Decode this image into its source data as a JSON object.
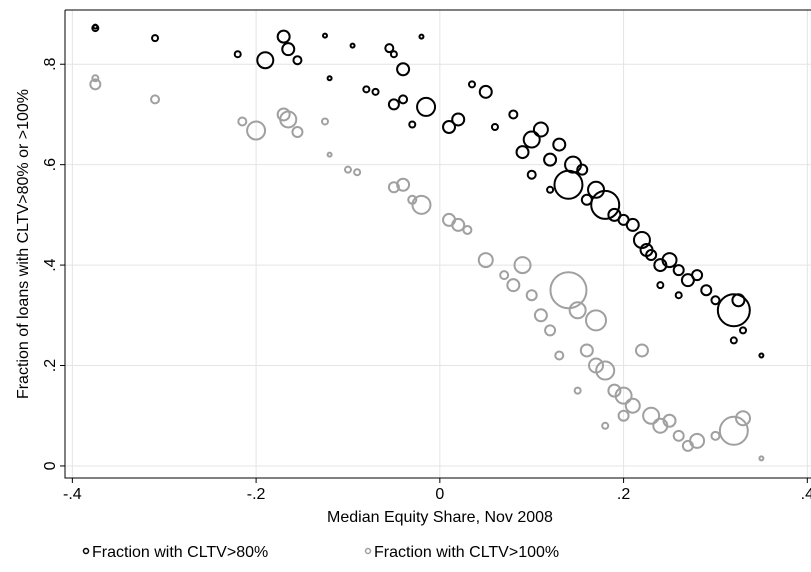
{
  "chart_data": {
    "type": "scatter",
    "x_label": "Median Equity Share, Nov 2008",
    "y_label": "Fraction of loans with CLTV>80% or >100%",
    "xlim": [
      -0.408,
      0.404
    ],
    "ylim": [
      -0.024,
      0.908
    ],
    "xticks": [
      {
        "value": -0.4,
        "label": "-.4"
      },
      {
        "value": -0.2,
        "label": "-.2"
      },
      0,
      {
        "value": 0.2,
        "label": ".2"
      },
      {
        "value": 0.4,
        "label": ".4"
      }
    ],
    "yticks": [
      0,
      {
        "value": 0.2,
        "label": ".2"
      },
      {
        "value": 0.4,
        "label": ".4"
      },
      {
        "value": 0.6,
        "label": ".6"
      },
      {
        "value": 0.8,
        "label": ".8"
      }
    ],
    "grid": true,
    "legend": "bottom",
    "series": [
      {
        "name": "Fraction with CLTV>80%",
        "color": "#000000",
        "x": [
          -0.375,
          -0.375,
          -0.31,
          -0.22,
          -0.19,
          -0.17,
          -0.165,
          -0.155,
          -0.125,
          -0.12,
          -0.095,
          -0.08,
          -0.07,
          -0.055,
          -0.05,
          -0.04,
          -0.03,
          -0.02,
          -0.05,
          -0.04,
          -0.015,
          0.01,
          0.02,
          0.035,
          0.05,
          0.06,
          0.08,
          0.09,
          0.1,
          0.11,
          0.12,
          0.13,
          0.14,
          0.145,
          0.155,
          0.16,
          0.17,
          0.18,
          0.19,
          0.2,
          0.21,
          0.22,
          0.225,
          0.23,
          0.24,
          0.25,
          0.26,
          0.27,
          0.28,
          0.29,
          0.3,
          0.32,
          0.325,
          0.33,
          0.32,
          0.35,
          0.24,
          0.26,
          0.1,
          0.12
        ],
        "values": [
          0.875,
          0.872,
          0.852,
          0.82,
          0.808,
          0.855,
          0.83,
          0.808,
          0.857,
          0.772,
          0.837,
          0.75,
          0.745,
          0.832,
          0.82,
          0.79,
          0.68,
          0.855,
          0.72,
          0.73,
          0.715,
          0.675,
          0.69,
          0.76,
          0.745,
          0.675,
          0.7,
          0.625,
          0.65,
          0.67,
          0.61,
          0.64,
          0.56,
          0.6,
          0.59,
          0.53,
          0.55,
          0.52,
          0.5,
          0.49,
          0.48,
          0.45,
          0.43,
          0.42,
          0.4,
          0.41,
          0.39,
          0.37,
          0.38,
          0.35,
          0.33,
          0.31,
          0.33,
          0.27,
          0.25,
          0.22,
          0.36,
          0.34,
          0.58,
          0.55
        ],
        "sizes": [
          2,
          3,
          3,
          3,
          8,
          6,
          6,
          4,
          2,
          2,
          2,
          3,
          3,
          4,
          3,
          6,
          3,
          2,
          5,
          4,
          9,
          6,
          6,
          3,
          6,
          3,
          4,
          6,
          8,
          7,
          6,
          6,
          14,
          8,
          5,
          5,
          8,
          14,
          6,
          5,
          6,
          8,
          6,
          5,
          6,
          7,
          5,
          6,
          5,
          5,
          4,
          16,
          6,
          3,
          3,
          2,
          3,
          3,
          4,
          3
        ]
      },
      {
        "name": "Fraction with CLTV>100%",
        "color": "#a0a0a0",
        "x": [
          -0.375,
          -0.375,
          -0.31,
          -0.215,
          -0.2,
          -0.17,
          -0.165,
          -0.155,
          -0.125,
          -0.12,
          -0.1,
          -0.09,
          -0.05,
          -0.04,
          -0.03,
          -0.02,
          0.01,
          0.02,
          0.03,
          0.05,
          0.07,
          0.08,
          0.09,
          0.1,
          0.11,
          0.12,
          0.14,
          0.15,
          0.16,
          0.17,
          0.18,
          0.19,
          0.2,
          0.21,
          0.22,
          0.23,
          0.24,
          0.25,
          0.26,
          0.27,
          0.28,
          0.3,
          0.32,
          0.33,
          0.35,
          0.17,
          0.13,
          0.15,
          0.18,
          0.2
        ],
        "values": [
          0.76,
          0.772,
          0.73,
          0.686,
          0.668,
          0.7,
          0.69,
          0.665,
          0.686,
          0.62,
          0.59,
          0.585,
          0.555,
          0.56,
          0.53,
          0.52,
          0.49,
          0.48,
          0.47,
          0.41,
          0.38,
          0.36,
          0.4,
          0.34,
          0.3,
          0.27,
          0.35,
          0.31,
          0.23,
          0.2,
          0.19,
          0.15,
          0.14,
          0.12,
          0.23,
          0.1,
          0.08,
          0.09,
          0.06,
          0.04,
          0.05,
          0.06,
          0.07,
          0.095,
          0.015,
          0.29,
          0.22,
          0.15,
          0.08,
          0.1
        ],
        "sizes": [
          5,
          3,
          4,
          4,
          9,
          6,
          8,
          5,
          3,
          2,
          3,
          3,
          5,
          6,
          4,
          9,
          6,
          6,
          4,
          7,
          4,
          6,
          8,
          5,
          6,
          5,
          18,
          8,
          6,
          7,
          9,
          6,
          8,
          7,
          6,
          8,
          7,
          6,
          5,
          5,
          7,
          4,
          14,
          7,
          2,
          10,
          4,
          3,
          3,
          5
        ]
      }
    ]
  }
}
